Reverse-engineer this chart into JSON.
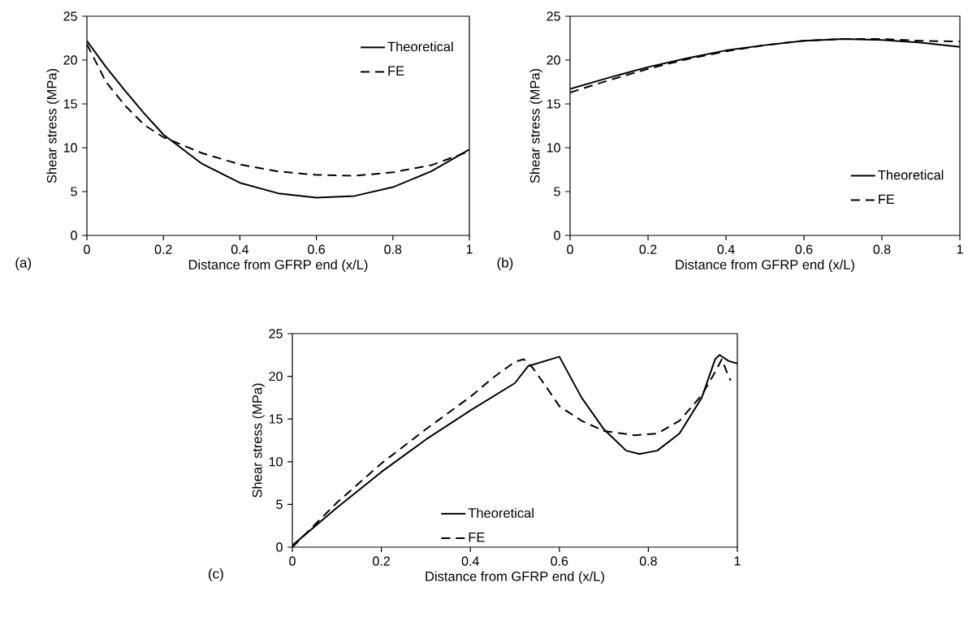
{
  "chart_data": [
    {
      "type": "line",
      "xlabel": "Distance from GFRP end (x/L)",
      "ylabel": "Shear stress (MPa)",
      "annotations": [
        "(a)"
      ],
      "xlim": [
        0,
        1
      ],
      "xticks": [
        0,
        0.2,
        0.4,
        0.6,
        0.8,
        1
      ],
      "ylim": [
        0,
        25
      ],
      "yticks": [
        0,
        5,
        10,
        15,
        20,
        25
      ],
      "legend": "top right",
      "grid": false,
      "series": [
        {
          "name": "Theoretical",
          "color": "#000000",
          "line_style": "solid",
          "x": [
            0,
            0.05,
            0.1,
            0.15,
            0.2,
            0.3,
            0.4,
            0.5,
            0.6,
            0.7,
            0.8,
            0.9,
            1
          ],
          "values": [
            22.2,
            19.2,
            16.5,
            13.9,
            11.5,
            8.2,
            6.0,
            4.8,
            4.3,
            4.5,
            5.5,
            7.3,
            9.8
          ]
        },
        {
          "name": "FE",
          "color": "#000000",
          "line_style": "dashed",
          "x": [
            0,
            0.05,
            0.1,
            0.15,
            0.2,
            0.3,
            0.4,
            0.5,
            0.6,
            0.7,
            0.8,
            0.9,
            1
          ],
          "values": [
            21.8,
            17.5,
            14.8,
            12.6,
            11.2,
            9.4,
            8.1,
            7.3,
            6.9,
            6.8,
            7.2,
            8.0,
            9.6
          ]
        }
      ]
    },
    {
      "type": "line",
      "xlabel": "Distance from GFRP end (x/L)",
      "ylabel": "Shear stress (MPa)",
      "annotations": [
        "(b)"
      ],
      "xlim": [
        0,
        1
      ],
      "xticks": [
        0,
        0.2,
        0.4,
        0.6,
        0.8,
        1
      ],
      "ylim": [
        0,
        25
      ],
      "yticks": [
        0,
        5,
        10,
        15,
        20,
        25
      ],
      "legend": "bottom right",
      "grid": false,
      "series": [
        {
          "name": "Theoretical",
          "color": "#000000",
          "line_style": "solid",
          "x": [
            0,
            0.1,
            0.2,
            0.3,
            0.4,
            0.5,
            0.6,
            0.7,
            0.8,
            0.9,
            1
          ],
          "values": [
            16.7,
            18.0,
            19.2,
            20.2,
            21.1,
            21.7,
            22.2,
            22.4,
            22.3,
            22.0,
            21.5
          ]
        },
        {
          "name": "FE",
          "color": "#000000",
          "line_style": "dashed",
          "x": [
            0,
            0.1,
            0.2,
            0.3,
            0.4,
            0.5,
            0.6,
            0.7,
            0.8,
            0.9,
            1
          ],
          "values": [
            16.3,
            17.7,
            19.0,
            20.1,
            21.0,
            21.7,
            22.2,
            22.4,
            22.4,
            22.2,
            22.1
          ]
        }
      ]
    },
    {
      "type": "line",
      "xlabel": "Distance from GFRP end (x/L)",
      "ylabel": "Shear stress (MPa)",
      "annotations": [
        "(c)"
      ],
      "xlim": [
        0,
        1
      ],
      "xticks": [
        0,
        0.2,
        0.4,
        0.6,
        0.8,
        1
      ],
      "ylim": [
        0,
        25
      ],
      "yticks": [
        0,
        5,
        10,
        15,
        20,
        25
      ],
      "legend": "bottom",
      "grid": false,
      "series": [
        {
          "name": "Theoretical",
          "color": "#000000",
          "line_style": "solid",
          "x": [
            0,
            0.1,
            0.2,
            0.3,
            0.4,
            0.5,
            0.53,
            0.6,
            0.65,
            0.7,
            0.75,
            0.78,
            0.82,
            0.87,
            0.92,
            0.95,
            0.96,
            0.98,
            1
          ],
          "values": [
            0.2,
            4.6,
            8.8,
            12.6,
            16.0,
            19.2,
            21.2,
            22.3,
            17.5,
            13.8,
            11.3,
            10.9,
            11.3,
            13.3,
            17.5,
            22.0,
            22.5,
            21.8,
            21.5
          ]
        },
        {
          "name": "FE",
          "color": "#000000",
          "line_style": "dashed",
          "x": [
            0,
            0.1,
            0.2,
            0.3,
            0.4,
            0.45,
            0.5,
            0.52,
            0.54,
            0.57,
            0.6,
            0.65,
            0.7,
            0.77,
            0.82,
            0.87,
            0.92,
            0.95,
            0.965,
            0.98,
            0.985
          ],
          "values": [
            0,
            5.2,
            9.8,
            13.8,
            17.6,
            19.8,
            21.7,
            22.0,
            21.0,
            18.8,
            16.5,
            14.8,
            13.6,
            13.1,
            13.3,
            14.8,
            17.8,
            20.5,
            22.0,
            20.0,
            19.5
          ]
        }
      ]
    }
  ]
}
